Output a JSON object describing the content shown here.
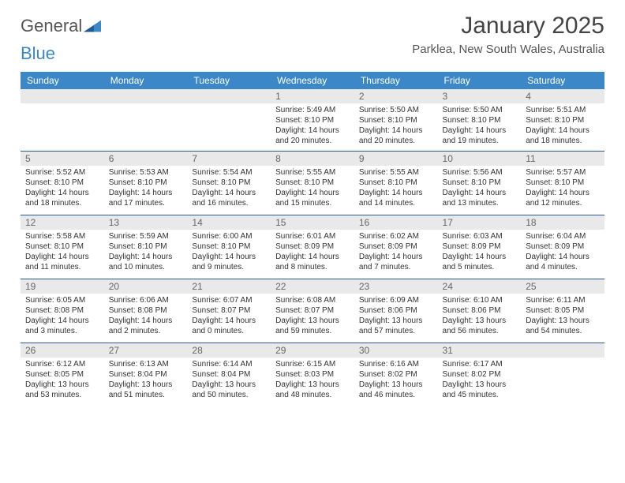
{
  "brand": {
    "word1": "General",
    "word2": "Blue"
  },
  "title": "January 2025",
  "location": "Parklea, New South Wales, Australia",
  "colors": {
    "header_bg": "#3b87c8",
    "header_fg": "#ffffff",
    "daynum_bg": "#e9e9e9",
    "row_divider": "#2b5a8a",
    "logo_blue": "#3b87c8",
    "logo_gray": "#555555",
    "page_bg": "#ffffff"
  },
  "day_headers": [
    "Sunday",
    "Monday",
    "Tuesday",
    "Wednesday",
    "Thursday",
    "Friday",
    "Saturday"
  ],
  "weeks": [
    [
      {
        "empty": true
      },
      {
        "empty": true
      },
      {
        "empty": true
      },
      {
        "n": "1",
        "sr": "Sunrise: 5:49 AM",
        "ss": "Sunset: 8:10 PM",
        "dl1": "Daylight: 14 hours",
        "dl2": "and 20 minutes."
      },
      {
        "n": "2",
        "sr": "Sunrise: 5:50 AM",
        "ss": "Sunset: 8:10 PM",
        "dl1": "Daylight: 14 hours",
        "dl2": "and 20 minutes."
      },
      {
        "n": "3",
        "sr": "Sunrise: 5:50 AM",
        "ss": "Sunset: 8:10 PM",
        "dl1": "Daylight: 14 hours",
        "dl2": "and 19 minutes."
      },
      {
        "n": "4",
        "sr": "Sunrise: 5:51 AM",
        "ss": "Sunset: 8:10 PM",
        "dl1": "Daylight: 14 hours",
        "dl2": "and 18 minutes."
      }
    ],
    [
      {
        "n": "5",
        "sr": "Sunrise: 5:52 AM",
        "ss": "Sunset: 8:10 PM",
        "dl1": "Daylight: 14 hours",
        "dl2": "and 18 minutes."
      },
      {
        "n": "6",
        "sr": "Sunrise: 5:53 AM",
        "ss": "Sunset: 8:10 PM",
        "dl1": "Daylight: 14 hours",
        "dl2": "and 17 minutes."
      },
      {
        "n": "7",
        "sr": "Sunrise: 5:54 AM",
        "ss": "Sunset: 8:10 PM",
        "dl1": "Daylight: 14 hours",
        "dl2": "and 16 minutes."
      },
      {
        "n": "8",
        "sr": "Sunrise: 5:55 AM",
        "ss": "Sunset: 8:10 PM",
        "dl1": "Daylight: 14 hours",
        "dl2": "and 15 minutes."
      },
      {
        "n": "9",
        "sr": "Sunrise: 5:55 AM",
        "ss": "Sunset: 8:10 PM",
        "dl1": "Daylight: 14 hours",
        "dl2": "and 14 minutes."
      },
      {
        "n": "10",
        "sr": "Sunrise: 5:56 AM",
        "ss": "Sunset: 8:10 PM",
        "dl1": "Daylight: 14 hours",
        "dl2": "and 13 minutes."
      },
      {
        "n": "11",
        "sr": "Sunrise: 5:57 AM",
        "ss": "Sunset: 8:10 PM",
        "dl1": "Daylight: 14 hours",
        "dl2": "and 12 minutes."
      }
    ],
    [
      {
        "n": "12",
        "sr": "Sunrise: 5:58 AM",
        "ss": "Sunset: 8:10 PM",
        "dl1": "Daylight: 14 hours",
        "dl2": "and 11 minutes."
      },
      {
        "n": "13",
        "sr": "Sunrise: 5:59 AM",
        "ss": "Sunset: 8:10 PM",
        "dl1": "Daylight: 14 hours",
        "dl2": "and 10 minutes."
      },
      {
        "n": "14",
        "sr": "Sunrise: 6:00 AM",
        "ss": "Sunset: 8:10 PM",
        "dl1": "Daylight: 14 hours",
        "dl2": "and 9 minutes."
      },
      {
        "n": "15",
        "sr": "Sunrise: 6:01 AM",
        "ss": "Sunset: 8:09 PM",
        "dl1": "Daylight: 14 hours",
        "dl2": "and 8 minutes."
      },
      {
        "n": "16",
        "sr": "Sunrise: 6:02 AM",
        "ss": "Sunset: 8:09 PM",
        "dl1": "Daylight: 14 hours",
        "dl2": "and 7 minutes."
      },
      {
        "n": "17",
        "sr": "Sunrise: 6:03 AM",
        "ss": "Sunset: 8:09 PM",
        "dl1": "Daylight: 14 hours",
        "dl2": "and 5 minutes."
      },
      {
        "n": "18",
        "sr": "Sunrise: 6:04 AM",
        "ss": "Sunset: 8:09 PM",
        "dl1": "Daylight: 14 hours",
        "dl2": "and 4 minutes."
      }
    ],
    [
      {
        "n": "19",
        "sr": "Sunrise: 6:05 AM",
        "ss": "Sunset: 8:08 PM",
        "dl1": "Daylight: 14 hours",
        "dl2": "and 3 minutes."
      },
      {
        "n": "20",
        "sr": "Sunrise: 6:06 AM",
        "ss": "Sunset: 8:08 PM",
        "dl1": "Daylight: 14 hours",
        "dl2": "and 2 minutes."
      },
      {
        "n": "21",
        "sr": "Sunrise: 6:07 AM",
        "ss": "Sunset: 8:07 PM",
        "dl1": "Daylight: 14 hours",
        "dl2": "and 0 minutes."
      },
      {
        "n": "22",
        "sr": "Sunrise: 6:08 AM",
        "ss": "Sunset: 8:07 PM",
        "dl1": "Daylight: 13 hours",
        "dl2": "and 59 minutes."
      },
      {
        "n": "23",
        "sr": "Sunrise: 6:09 AM",
        "ss": "Sunset: 8:06 PM",
        "dl1": "Daylight: 13 hours",
        "dl2": "and 57 minutes."
      },
      {
        "n": "24",
        "sr": "Sunrise: 6:10 AM",
        "ss": "Sunset: 8:06 PM",
        "dl1": "Daylight: 13 hours",
        "dl2": "and 56 minutes."
      },
      {
        "n": "25",
        "sr": "Sunrise: 6:11 AM",
        "ss": "Sunset: 8:05 PM",
        "dl1": "Daylight: 13 hours",
        "dl2": "and 54 minutes."
      }
    ],
    [
      {
        "n": "26",
        "sr": "Sunrise: 6:12 AM",
        "ss": "Sunset: 8:05 PM",
        "dl1": "Daylight: 13 hours",
        "dl2": "and 53 minutes."
      },
      {
        "n": "27",
        "sr": "Sunrise: 6:13 AM",
        "ss": "Sunset: 8:04 PM",
        "dl1": "Daylight: 13 hours",
        "dl2": "and 51 minutes."
      },
      {
        "n": "28",
        "sr": "Sunrise: 6:14 AM",
        "ss": "Sunset: 8:04 PM",
        "dl1": "Daylight: 13 hours",
        "dl2": "and 50 minutes."
      },
      {
        "n": "29",
        "sr": "Sunrise: 6:15 AM",
        "ss": "Sunset: 8:03 PM",
        "dl1": "Daylight: 13 hours",
        "dl2": "and 48 minutes."
      },
      {
        "n": "30",
        "sr": "Sunrise: 6:16 AM",
        "ss": "Sunset: 8:02 PM",
        "dl1": "Daylight: 13 hours",
        "dl2": "and 46 minutes."
      },
      {
        "n": "31",
        "sr": "Sunrise: 6:17 AM",
        "ss": "Sunset: 8:02 PM",
        "dl1": "Daylight: 13 hours",
        "dl2": "and 45 minutes."
      },
      {
        "empty": true
      }
    ]
  ]
}
